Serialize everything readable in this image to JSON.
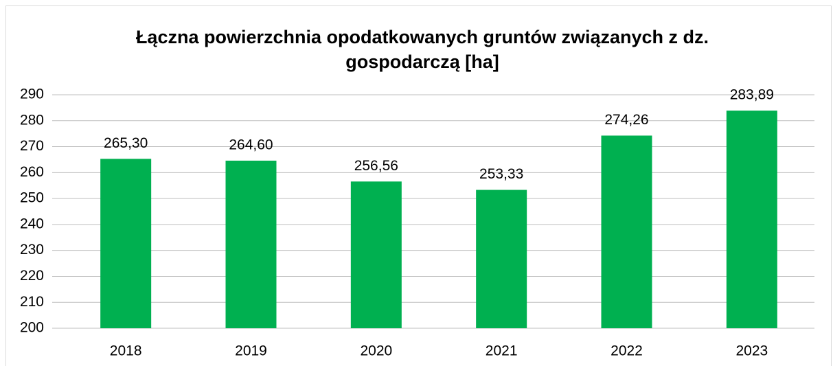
{
  "chart_data": {
    "type": "bar",
    "title": "Łączna powierzchnia opodatkowanych gruntów związanych z dz. gospodarczą [ha]",
    "categories": [
      "2018",
      "2019",
      "2020",
      "2021",
      "2022",
      "2023"
    ],
    "values": [
      265.3,
      264.6,
      256.56,
      253.33,
      274.26,
      283.89
    ],
    "value_labels": [
      "265,30",
      "264,60",
      "256,56",
      "253,33",
      "274,26",
      "283,89"
    ],
    "color": "#00b050",
    "ylim": [
      200,
      290
    ],
    "yticks": [
      200,
      210,
      220,
      230,
      240,
      250,
      260,
      270,
      280,
      290
    ],
    "grid": true
  }
}
